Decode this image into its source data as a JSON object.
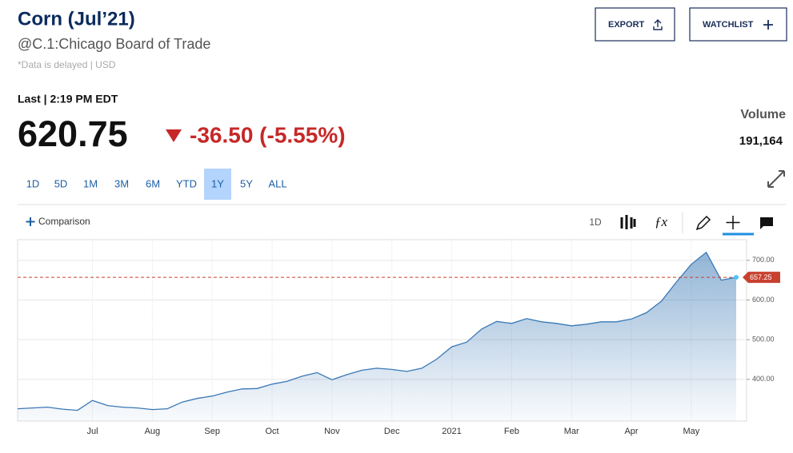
{
  "header": {
    "title": "Corn (Jul’21)",
    "exchange": "@C.1:Chicago Board of Trade",
    "note": "*Data is delayed | USD",
    "export": "EXPORT",
    "watchlist": "WATCHLIST"
  },
  "quote": {
    "last": "Last | 2:19 PM EDT",
    "price": "620.75",
    "change": "-36.50 (-5.55%)",
    "volume_label": "Volume",
    "volume": "191,164"
  },
  "ranges": [
    "1D",
    "5D",
    "1M",
    "3M",
    "6M",
    "YTD",
    "1Y",
    "5Y",
    "ALL"
  ],
  "toolbar": {
    "comparison": "Comparison",
    "interval": "1D"
  },
  "chart_data": {
    "type": "line",
    "color": "#3a78b5",
    "categories": [
      null,
      null,
      null,
      null,
      null,
      "Jul",
      null,
      null,
      null,
      "Aug",
      null,
      null,
      null,
      "Sep",
      null,
      null,
      null,
      "Oct",
      null,
      null,
      null,
      "Nov",
      null,
      null,
      null,
      "Dec",
      null,
      null,
      null,
      "2021",
      null,
      null,
      null,
      "Feb",
      null,
      null,
      null,
      "Mar",
      null,
      null,
      null,
      "Apr",
      null,
      null,
      null,
      "May",
      null,
      null,
      null
    ],
    "values": [
      326,
      328,
      330,
      325,
      322,
      347,
      334,
      330,
      328,
      324,
      326,
      343,
      352,
      358,
      368,
      376,
      377,
      388,
      395,
      408,
      417,
      399,
      412,
      423,
      428,
      425,
      420,
      428,
      451,
      482,
      494,
      527,
      546,
      541,
      553,
      545,
      541,
      535,
      539,
      545,
      545,
      552,
      568,
      597,
      645,
      690,
      720,
      650,
      657.25
    ],
    "ylim": [
      295,
      752
    ],
    "yticks": [
      {
        "value": 400,
        "label": "400.00"
      },
      {
        "value": 500,
        "label": "500.00"
      },
      {
        "value": 600,
        "label": "600.00"
      },
      {
        "value": 700,
        "label": "700.00"
      }
    ],
    "reference_value": 657.25,
    "reference_color": "#c8412f",
    "grid": true
  }
}
